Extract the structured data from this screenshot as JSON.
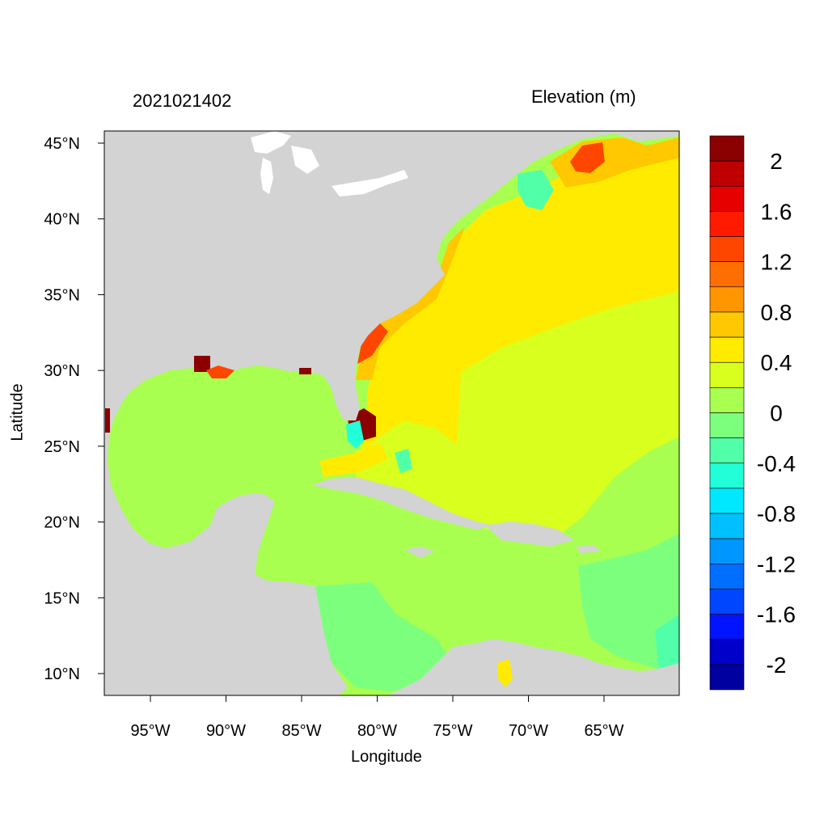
{
  "header": {
    "date_label": "2021021402",
    "variable_label": "Elevation (m)"
  },
  "axes": {
    "xlabel": "Longitude",
    "ylabel": "Latitude",
    "xticks": [
      {
        "value": -95,
        "label": "95°W"
      },
      {
        "value": -90,
        "label": "90°W"
      },
      {
        "value": -85,
        "label": "85°W"
      },
      {
        "value": -80,
        "label": "80°W"
      },
      {
        "value": -75,
        "label": "75°W"
      },
      {
        "value": -70,
        "label": "70°W"
      },
      {
        "value": -65,
        "label": "65°W"
      }
    ],
    "yticks": [
      {
        "value": 45,
        "label": "45°N"
      },
      {
        "value": 40,
        "label": "40°N"
      },
      {
        "value": 35,
        "label": "35°N"
      },
      {
        "value": 30,
        "label": "30°N"
      },
      {
        "value": 25,
        "label": "25°N"
      },
      {
        "value": 20,
        "label": "20°N"
      },
      {
        "value": 15,
        "label": "15°N"
      },
      {
        "value": 10,
        "label": "10°N"
      }
    ],
    "lon_range": [
      -98,
      -60
    ],
    "lat_range": [
      8.5,
      45.8
    ]
  },
  "colorbar": {
    "colors_top_to_bottom": [
      "#8b0000",
      "#bf0000",
      "#e60000",
      "#ff1a00",
      "#ff4600",
      "#ff6e00",
      "#ff9600",
      "#ffc800",
      "#ffeb00",
      "#d8ff1e",
      "#a8ff50",
      "#7dff7e",
      "#50ffa8",
      "#22ffd8",
      "#00e8ff",
      "#00c0ff",
      "#0096ff",
      "#006eff",
      "#0046ff",
      "#0014ff",
      "#0000c8",
      "#0000a0"
    ],
    "labels": [
      "2",
      "1.6",
      "1.2",
      "0.8",
      "0.4",
      "0",
      "-0.4",
      "-0.8",
      "-1.2",
      "-1.6",
      "-2"
    ]
  },
  "map_colors": {
    "land": "#d3d3d3",
    "lakes": "#ffffff",
    "level_0": "#a8ff50",
    "level_0_4": "#d8ff1e",
    "level_0_6": "#ffeb00",
    "level_0_8": "#ffc800",
    "level_1_0": "#ff9600",
    "level_1_4": "#ff4600",
    "level_2": "#8b0000",
    "level_neg": "#7dff7e",
    "level_neg_4": "#22ffd8"
  }
}
